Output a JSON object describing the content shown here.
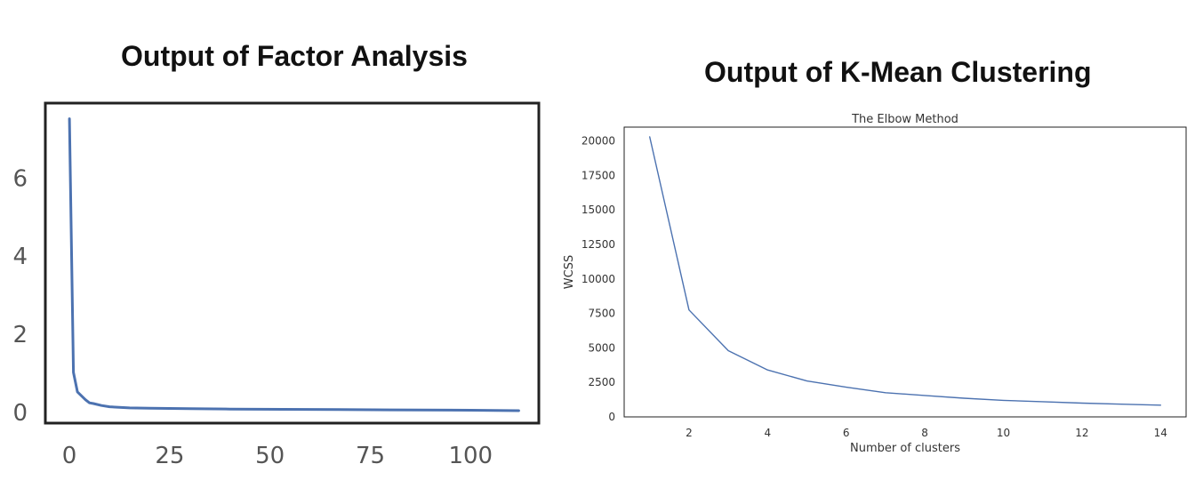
{
  "panels": {
    "left_heading": "Output of Factor Analysis",
    "right_heading": "Output of K-Mean Clustering"
  },
  "colors": {
    "line": "#4c72b0",
    "axes": "#222222"
  },
  "chart_data": [
    {
      "type": "line",
      "title": "",
      "xlabel": "",
      "ylabel": "",
      "xlim": [
        -6,
        117
      ],
      "ylim": [
        -0.3,
        7.9
      ],
      "xticks": [
        0,
        25,
        50,
        75,
        100
      ],
      "yticks": [
        0,
        2,
        4,
        6
      ],
      "grid": false,
      "series": [
        {
          "x": [
            0,
            1,
            2,
            3,
            4,
            5,
            6,
            8,
            10,
            15,
            20,
            30,
            40,
            60,
            80,
            100,
            112
          ],
          "values": [
            7.5,
            1.0,
            0.5,
            0.4,
            0.3,
            0.22,
            0.2,
            0.15,
            0.12,
            0.09,
            0.08,
            0.07,
            0.06,
            0.05,
            0.04,
            0.03,
            0.02
          ]
        }
      ]
    },
    {
      "type": "line",
      "title": "The Elbow Method",
      "xlabel": "Number of clusters",
      "ylabel": "WCSS",
      "xlim": [
        0.35,
        14.65
      ],
      "ylim": [
        0,
        21000
      ],
      "xticks": [
        2,
        4,
        6,
        8,
        10,
        12,
        14
      ],
      "yticks": [
        0,
        2500,
        5000,
        7500,
        10000,
        12500,
        15000,
        17500,
        20000
      ],
      "grid": false,
      "series": [
        {
          "x": [
            1,
            2,
            3,
            4,
            5,
            6,
            7,
            8,
            9,
            10,
            11,
            12,
            13,
            14
          ],
          "values": [
            20300,
            7750,
            4800,
            3400,
            2600,
            2150,
            1750,
            1550,
            1350,
            1200,
            1100,
            1000,
            920,
            850
          ]
        }
      ]
    }
  ]
}
